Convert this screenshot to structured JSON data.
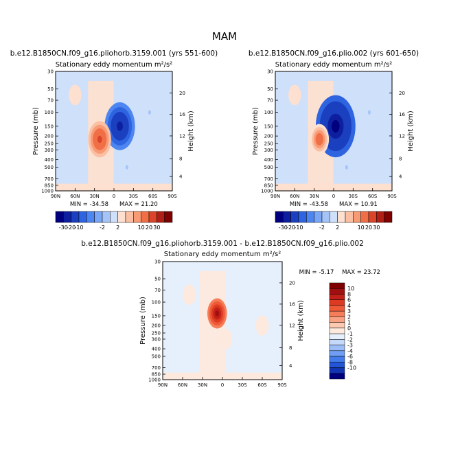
{
  "page_title": "MAM",
  "chart_data": [
    {
      "type": "heatmap",
      "case": "b.e12.B1850CN.f09_g16.pliohorb.3159.001 (yrs 551-600)",
      "variable": "Stationary eddy momentum",
      "units": "m²/s²",
      "ylabel": "Pressure (mb)",
      "y2label": "Height (km)",
      "xticks": [
        "90N",
        "60N",
        "30N",
        "0",
        "30S",
        "60S",
        "90S"
      ],
      "yticks": [
        "30",
        "50",
        "70",
        "100",
        "150",
        "200",
        "250",
        "300",
        "400",
        "500",
        "700",
        "850",
        "1000"
      ],
      "y2ticks": [
        "20",
        "16",
        "12",
        "8",
        "4"
      ],
      "stats": {
        "min": "MIN = -34.58",
        "max": "MAX = 21.20"
      },
      "features": [
        {
          "lat": -9,
          "p": 150,
          "value": -20
        },
        {
          "lat": 22,
          "p": 220,
          "value": 12
        },
        {
          "lat": -20,
          "p": 500,
          "value": -2
        },
        {
          "lat": -55,
          "p": 100,
          "value": -2
        },
        {
          "lat": 60,
          "p": 60,
          "value": 1
        }
      ]
    },
    {
      "type": "heatmap",
      "case": "b.e12.B1850CN.f09_g16.plio.002 (yrs 601-650)",
      "variable": "Stationary eddy momentum",
      "units": "m²/s²",
      "ylabel": "Pressure (mb)",
      "y2label": "Height (km)",
      "xticks": [
        "90N",
        "60N",
        "30N",
        "0",
        "30S",
        "60S",
        "90S"
      ],
      "yticks": [
        "30",
        "50",
        "70",
        "100",
        "150",
        "200",
        "250",
        "300",
        "400",
        "500",
        "700",
        "850",
        "1000"
      ],
      "y2ticks": [
        "20",
        "16",
        "12",
        "8",
        "4"
      ],
      "stats": {
        "min": "MIN = -43.58",
        "max": "MAX = 10.91"
      },
      "features": [
        {
          "lat": -3,
          "p": 150,
          "value": -30
        },
        {
          "lat": 22,
          "p": 220,
          "value": 8
        },
        {
          "lat": -20,
          "p": 500,
          "value": -2
        },
        {
          "lat": -55,
          "p": 100,
          "value": -2
        },
        {
          "lat": 60,
          "p": 60,
          "value": 1
        }
      ]
    },
    {
      "type": "heatmap",
      "case": "b.e12.B1850CN.f09_g16.pliohorb.3159.001 - b.e12.B1850CN.f09_g16.plio.002",
      "variable": "Stationary eddy momentum",
      "units": "m²/s²",
      "ylabel": "Pressure (mb)",
      "y2label": "Height (km)",
      "xticks": [
        "90N",
        "60N",
        "30N",
        "0",
        "30S",
        "60S",
        "90S"
      ],
      "yticks": [
        "30",
        "50",
        "70",
        "100",
        "150",
        "200",
        "250",
        "300",
        "400",
        "500",
        "700",
        "850",
        "1000"
      ],
      "y2ticks": [
        "20",
        "16",
        "12",
        "8",
        "4"
      ],
      "stats": {
        "min": "MIN = -5.17",
        "max": "MAX = 23.72"
      },
      "features": [
        {
          "lat": 8,
          "p": 140,
          "value": 8
        },
        {
          "lat": -5,
          "p": 300,
          "value": -1
        },
        {
          "lat": 50,
          "p": 80,
          "value": -1
        },
        {
          "lat": -60,
          "p": 200,
          "value": -1
        }
      ]
    }
  ],
  "colorbar_horizontal": {
    "labels": [
      "-30",
      "-20",
      "-10",
      "-2",
      "2",
      "10",
      "20",
      "30"
    ],
    "colors": [
      "#00007f",
      "#0d1f9f",
      "#1a3fbf",
      "#2e64e0",
      "#4d86f0",
      "#79a6f5",
      "#a4c4f8",
      "#cfe0fb",
      "#fde0d0",
      "#fbbfa3",
      "#f89a74",
      "#f06f47",
      "#d9442a",
      "#b01f15",
      "#7f0000"
    ]
  },
  "colorbar_vertical": {
    "labels": [
      "10",
      "8",
      "6",
      "4",
      "3",
      "2",
      "1",
      "0",
      "-1",
      "-2",
      "-3",
      "-4",
      "-6",
      "-8",
      "-10"
    ],
    "colors": [
      "#7f0000",
      "#a01010",
      "#c02018",
      "#dd3a22",
      "#ee5a38",
      "#f57e58",
      "#f9a283",
      "#fcc9b2",
      "#fde9de",
      "#e6f0fc",
      "#c5dafb",
      "#9cbef8",
      "#6f9ef4",
      "#437bea",
      "#2356d6",
      "#1234b0",
      "#00007f"
    ]
  }
}
